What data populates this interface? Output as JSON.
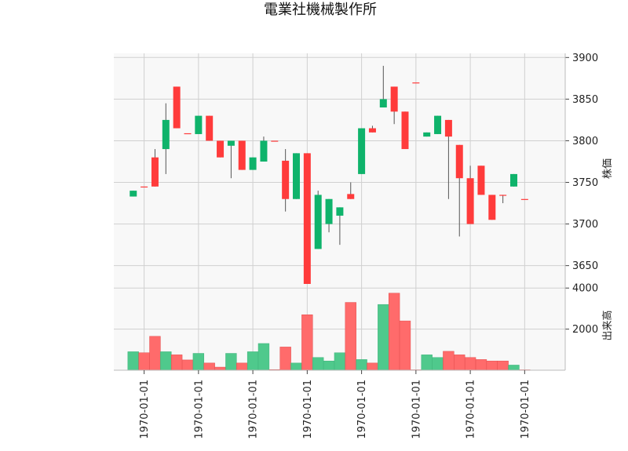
{
  "chart_data": {
    "type": "candlestick",
    "title": "電業社機械製作所",
    "price_axis": {
      "label": "株価",
      "ylim": [
        3628,
        3905
      ],
      "ticks": [
        3650,
        3700,
        3750,
        3800,
        3850,
        3900
      ]
    },
    "volume_axis": {
      "label": "出来高",
      "ylim": [
        0,
        4200
      ],
      "ticks": [
        2000,
        4000
      ]
    },
    "x_tick_labels": [
      "1970-01-01",
      "1970-01-01",
      "1970-01-01",
      "1970-01-01",
      "1970-01-01",
      "1970-01-01",
      "1970-01-01",
      "1970-01-01"
    ],
    "x_tick_positions": [
      1,
      6,
      11,
      16,
      21,
      26,
      31,
      36
    ],
    "grid": true,
    "colors": {
      "up": "#ff3b3b",
      "down": "#0fb36b",
      "up_volume": "#ff6b6b",
      "down_volume": "#4fc98c"
    },
    "candles": [
      {
        "open": 3740,
        "high": 3740,
        "low": 3733,
        "close": 3733,
        "volume": 900
      },
      {
        "open": 3745,
        "high": 3745,
        "low": 3745,
        "close": 3745,
        "volume": 850
      },
      {
        "open": 3745,
        "high": 3790,
        "low": 3745,
        "close": 3780,
        "volume": 1650
      },
      {
        "open": 3825,
        "high": 3845,
        "low": 3760,
        "close": 3790,
        "volume": 900
      },
      {
        "open": 3815,
        "high": 3865,
        "low": 3815,
        "close": 3865,
        "volume": 750
      },
      {
        "open": 3809,
        "high": 3809,
        "low": 3809,
        "close": 3809,
        "volume": 500
      },
      {
        "open": 3830,
        "high": 3830,
        "low": 3808,
        "close": 3808,
        "volume": 820
      },
      {
        "open": 3800,
        "high": 3830,
        "low": 3800,
        "close": 3830,
        "volume": 350
      },
      {
        "open": 3780,
        "high": 3800,
        "low": 3780,
        "close": 3800,
        "volume": 150
      },
      {
        "open": 3800,
        "high": 3800,
        "low": 3755,
        "close": 3794,
        "volume": 820
      },
      {
        "open": 3765,
        "high": 3800,
        "low": 3765,
        "close": 3800,
        "volume": 350
      },
      {
        "open": 3780,
        "high": 3780,
        "low": 3765,
        "close": 3765,
        "volume": 900
      },
      {
        "open": 3800,
        "high": 3805,
        "low": 3775,
        "close": 3775,
        "volume": 1300
      },
      {
        "open": 3800,
        "high": 3800,
        "low": 3800,
        "close": 3800,
        "volume": 30
      },
      {
        "open": 3730,
        "high": 3790,
        "low": 3715,
        "close": 3776,
        "volume": 1130
      },
      {
        "open": 3785,
        "high": 3785,
        "low": 3730,
        "close": 3730,
        "volume": 350
      },
      {
        "open": 3622,
        "high": 3785,
        "low": 3618,
        "close": 3785,
        "volume": 2700
      },
      {
        "open": 3735,
        "high": 3740,
        "low": 3670,
        "close": 3670,
        "volume": 620
      },
      {
        "open": 3730,
        "high": 3730,
        "low": 3690,
        "close": 3700,
        "volume": 450
      },
      {
        "open": 3720,
        "high": 3720,
        "low": 3675,
        "close": 3710,
        "volume": 850
      },
      {
        "open": 3730,
        "high": 3750,
        "low": 3730,
        "close": 3736,
        "volume": 3300
      },
      {
        "open": 3815,
        "high": 3815,
        "low": 3760,
        "close": 3760,
        "volume": 520
      },
      {
        "open": 3810,
        "high": 3818,
        "low": 3810,
        "close": 3815,
        "volume": 350
      },
      {
        "open": 3850,
        "high": 3890,
        "low": 3840,
        "close": 3840,
        "volume": 3200
      },
      {
        "open": 3835,
        "high": 3865,
        "low": 3820,
        "close": 3865,
        "volume": 3750
      },
      {
        "open": 3790,
        "high": 3835,
        "low": 3790,
        "close": 3835,
        "volume": 2400
      },
      {
        "open": 3870,
        "high": 3870,
        "low": 3870,
        "close": 3870,
        "volume": 20
      },
      {
        "open": 3810,
        "high": 3810,
        "low": 3805,
        "close": 3805,
        "volume": 750
      },
      {
        "open": 3830,
        "high": 3830,
        "low": 3808,
        "close": 3808,
        "volume": 620
      },
      {
        "open": 3805,
        "high": 3825,
        "low": 3730,
        "close": 3825,
        "volume": 920
      },
      {
        "open": 3755,
        "high": 3795,
        "low": 3685,
        "close": 3795,
        "volume": 750
      },
      {
        "open": 3700,
        "high": 3770,
        "low": 3700,
        "close": 3755,
        "volume": 620
      },
      {
        "open": 3735,
        "high": 3770,
        "low": 3735,
        "close": 3770,
        "volume": 520
      },
      {
        "open": 3705,
        "high": 3735,
        "low": 3705,
        "close": 3735,
        "volume": 450
      },
      {
        "open": 3735,
        "high": 3735,
        "low": 3725,
        "close": 3735,
        "volume": 450
      },
      {
        "open": 3760,
        "high": 3760,
        "low": 3745,
        "close": 3745,
        "volume": 250
      },
      {
        "open": 3730,
        "high": 3730,
        "low": 3730,
        "close": 3730,
        "volume": 20
      }
    ]
  }
}
